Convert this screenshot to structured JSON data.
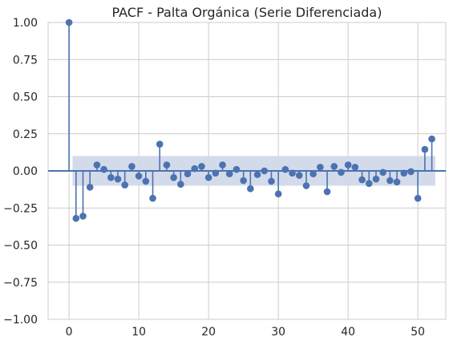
{
  "chart_data": {
    "type": "scatter",
    "subtype": "stem",
    "title": "PACF - Palta Orgánica (Serie Diferenciada)",
    "xlabel": "",
    "ylabel": "",
    "xlim": [
      -3,
      54
    ],
    "ylim": [
      -1.0,
      1.0
    ],
    "xticks": [
      0,
      10,
      20,
      30,
      40,
      50
    ],
    "yticks": [
      1.0,
      0.75,
      0.5,
      0.25,
      0.0,
      -0.25,
      -0.5,
      -0.75,
      -1.0
    ],
    "xtick_labels": [
      "0",
      "10",
      "20",
      "30",
      "40",
      "50"
    ],
    "ytick_labels": [
      "1.00",
      "0.75",
      "0.50",
      "0.25",
      "0.00",
      "−0.25",
      "−0.50",
      "−0.75",
      "−1.00"
    ],
    "grid": true,
    "confidence_band": {
      "x_range": [
        0.5,
        52.5
      ],
      "lower": -0.1,
      "upper": 0.1
    },
    "lags": [
      0,
      1,
      2,
      3,
      4,
      5,
      6,
      7,
      8,
      9,
      10,
      11,
      12,
      13,
      14,
      15,
      16,
      17,
      18,
      19,
      20,
      21,
      22,
      23,
      24,
      25,
      26,
      27,
      28,
      29,
      30,
      31,
      32,
      33,
      34,
      35,
      36,
      37,
      38,
      39,
      40,
      41,
      42,
      43,
      44,
      45,
      46,
      47,
      48,
      49,
      50,
      51,
      52
    ],
    "values": [
      1.0,
      -0.32,
      -0.305,
      -0.11,
      0.04,
      0.01,
      -0.045,
      -0.055,
      -0.095,
      0.03,
      -0.035,
      -0.07,
      -0.185,
      0.18,
      0.04,
      -0.045,
      -0.09,
      -0.02,
      0.015,
      0.03,
      -0.045,
      -0.015,
      0.04,
      -0.02,
      0.01,
      -0.065,
      -0.12,
      -0.025,
      0.0,
      -0.07,
      -0.155,
      0.01,
      -0.015,
      -0.03,
      -0.1,
      -0.02,
      0.025,
      -0.14,
      0.03,
      -0.01,
      0.04,
      0.025,
      -0.06,
      -0.085,
      -0.055,
      -0.01,
      -0.065,
      -0.075,
      -0.015,
      -0.005,
      -0.185,
      0.145,
      0.215
    ]
  },
  "colors": {
    "stem": "#4c72b0",
    "band": "#d1d9ea",
    "zero_line": "#4c72b0",
    "grid": "#cccccc"
  }
}
